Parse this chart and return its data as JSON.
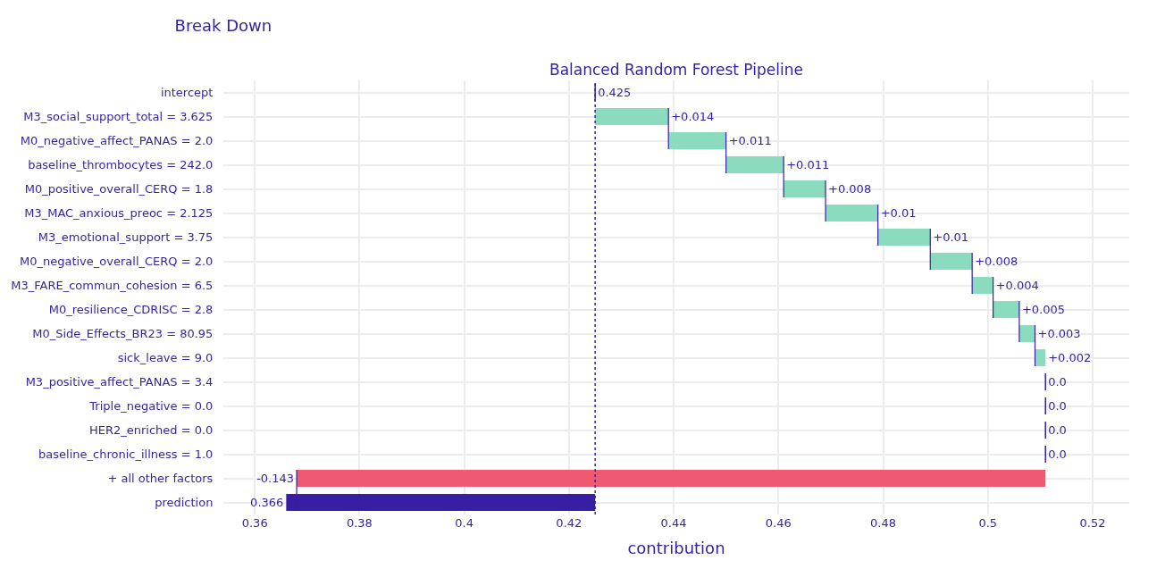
{
  "chart_data": {
    "type": "bar",
    "orientation": "horizontal",
    "title": "Break Down",
    "subtitle": "Balanced Random Forest Pipeline",
    "xlabel": "contribution",
    "categories": [
      "intercept",
      "M3_social_support_total = 3.625",
      "M0_negative_affect_PANAS = 2.0",
      "baseline_thrombocytes = 242.0",
      "M0_positive_overall_CERQ = 1.8",
      "M3_MAC_anxious_preoc = 2.125",
      "M3_emotional_support = 3.75",
      "M0_negative_overall_CERQ = 2.0",
      "M3_FARE_commun_cohesion = 6.5",
      "M0_resilience_CDRISC = 2.8",
      "M0_Side_Effects_BR23 = 80.95",
      "sick_leave = 9.0",
      "M3_positive_affect_PANAS = 3.4",
      "Triple_negative = 0.0",
      "HER2_enriched = 0.0",
      "baseline_chronic_illness = 1.0",
      "+ all other factors",
      "prediction"
    ],
    "base": [
      0.425,
      0.425,
      0.439,
      0.45,
      0.461,
      0.469,
      0.479,
      0.489,
      0.497,
      0.501,
      0.506,
      0.509,
      0.511,
      0.511,
      0.511,
      0.511,
      0.511,
      0.425
    ],
    "values": [
      0,
      0.014,
      0.011,
      0.011,
      0.008,
      0.01,
      0.01,
      0.008,
      0.004,
      0.005,
      0.003,
      0.002,
      0,
      0,
      0,
      0,
      -0.143,
      -0.059
    ],
    "value_labels": [
      "0.425",
      "+0.014",
      "+0.011",
      "+0.011",
      "+0.008",
      "+0.01",
      "+0.01",
      "+0.008",
      "+0.004",
      "+0.005",
      "+0.003",
      "+0.002",
      "0.0",
      "0.0",
      "0.0",
      "0.0",
      "-0.143",
      "0.366"
    ],
    "colors": [
      "#371ea3",
      "#8bdcbe",
      "#8bdcbe",
      "#8bdcbe",
      "#8bdcbe",
      "#8bdcbe",
      "#8bdcbe",
      "#8bdcbe",
      "#8bdcbe",
      "#8bdcbe",
      "#8bdcbe",
      "#8bdcbe",
      "#371ea3",
      "#371ea3",
      "#371ea3",
      "#371ea3",
      "#f05a71",
      "#371ea3"
    ],
    "xlim": [
      0.354,
      0.527
    ],
    "xticks": [
      0.36,
      0.38,
      {
        "value": 0.4,
        "label": "0.4"
      },
      0.42,
      0.44,
      0.46,
      0.48,
      {
        "value": 0.5,
        "label": "0.5"
      },
      0.52
    ],
    "ref_lines": [
      {
        "axis": "x",
        "value": 0.425,
        "color": "#371ea3",
        "line_style": "dotted"
      }
    ],
    "grid": true,
    "legend": false
  }
}
